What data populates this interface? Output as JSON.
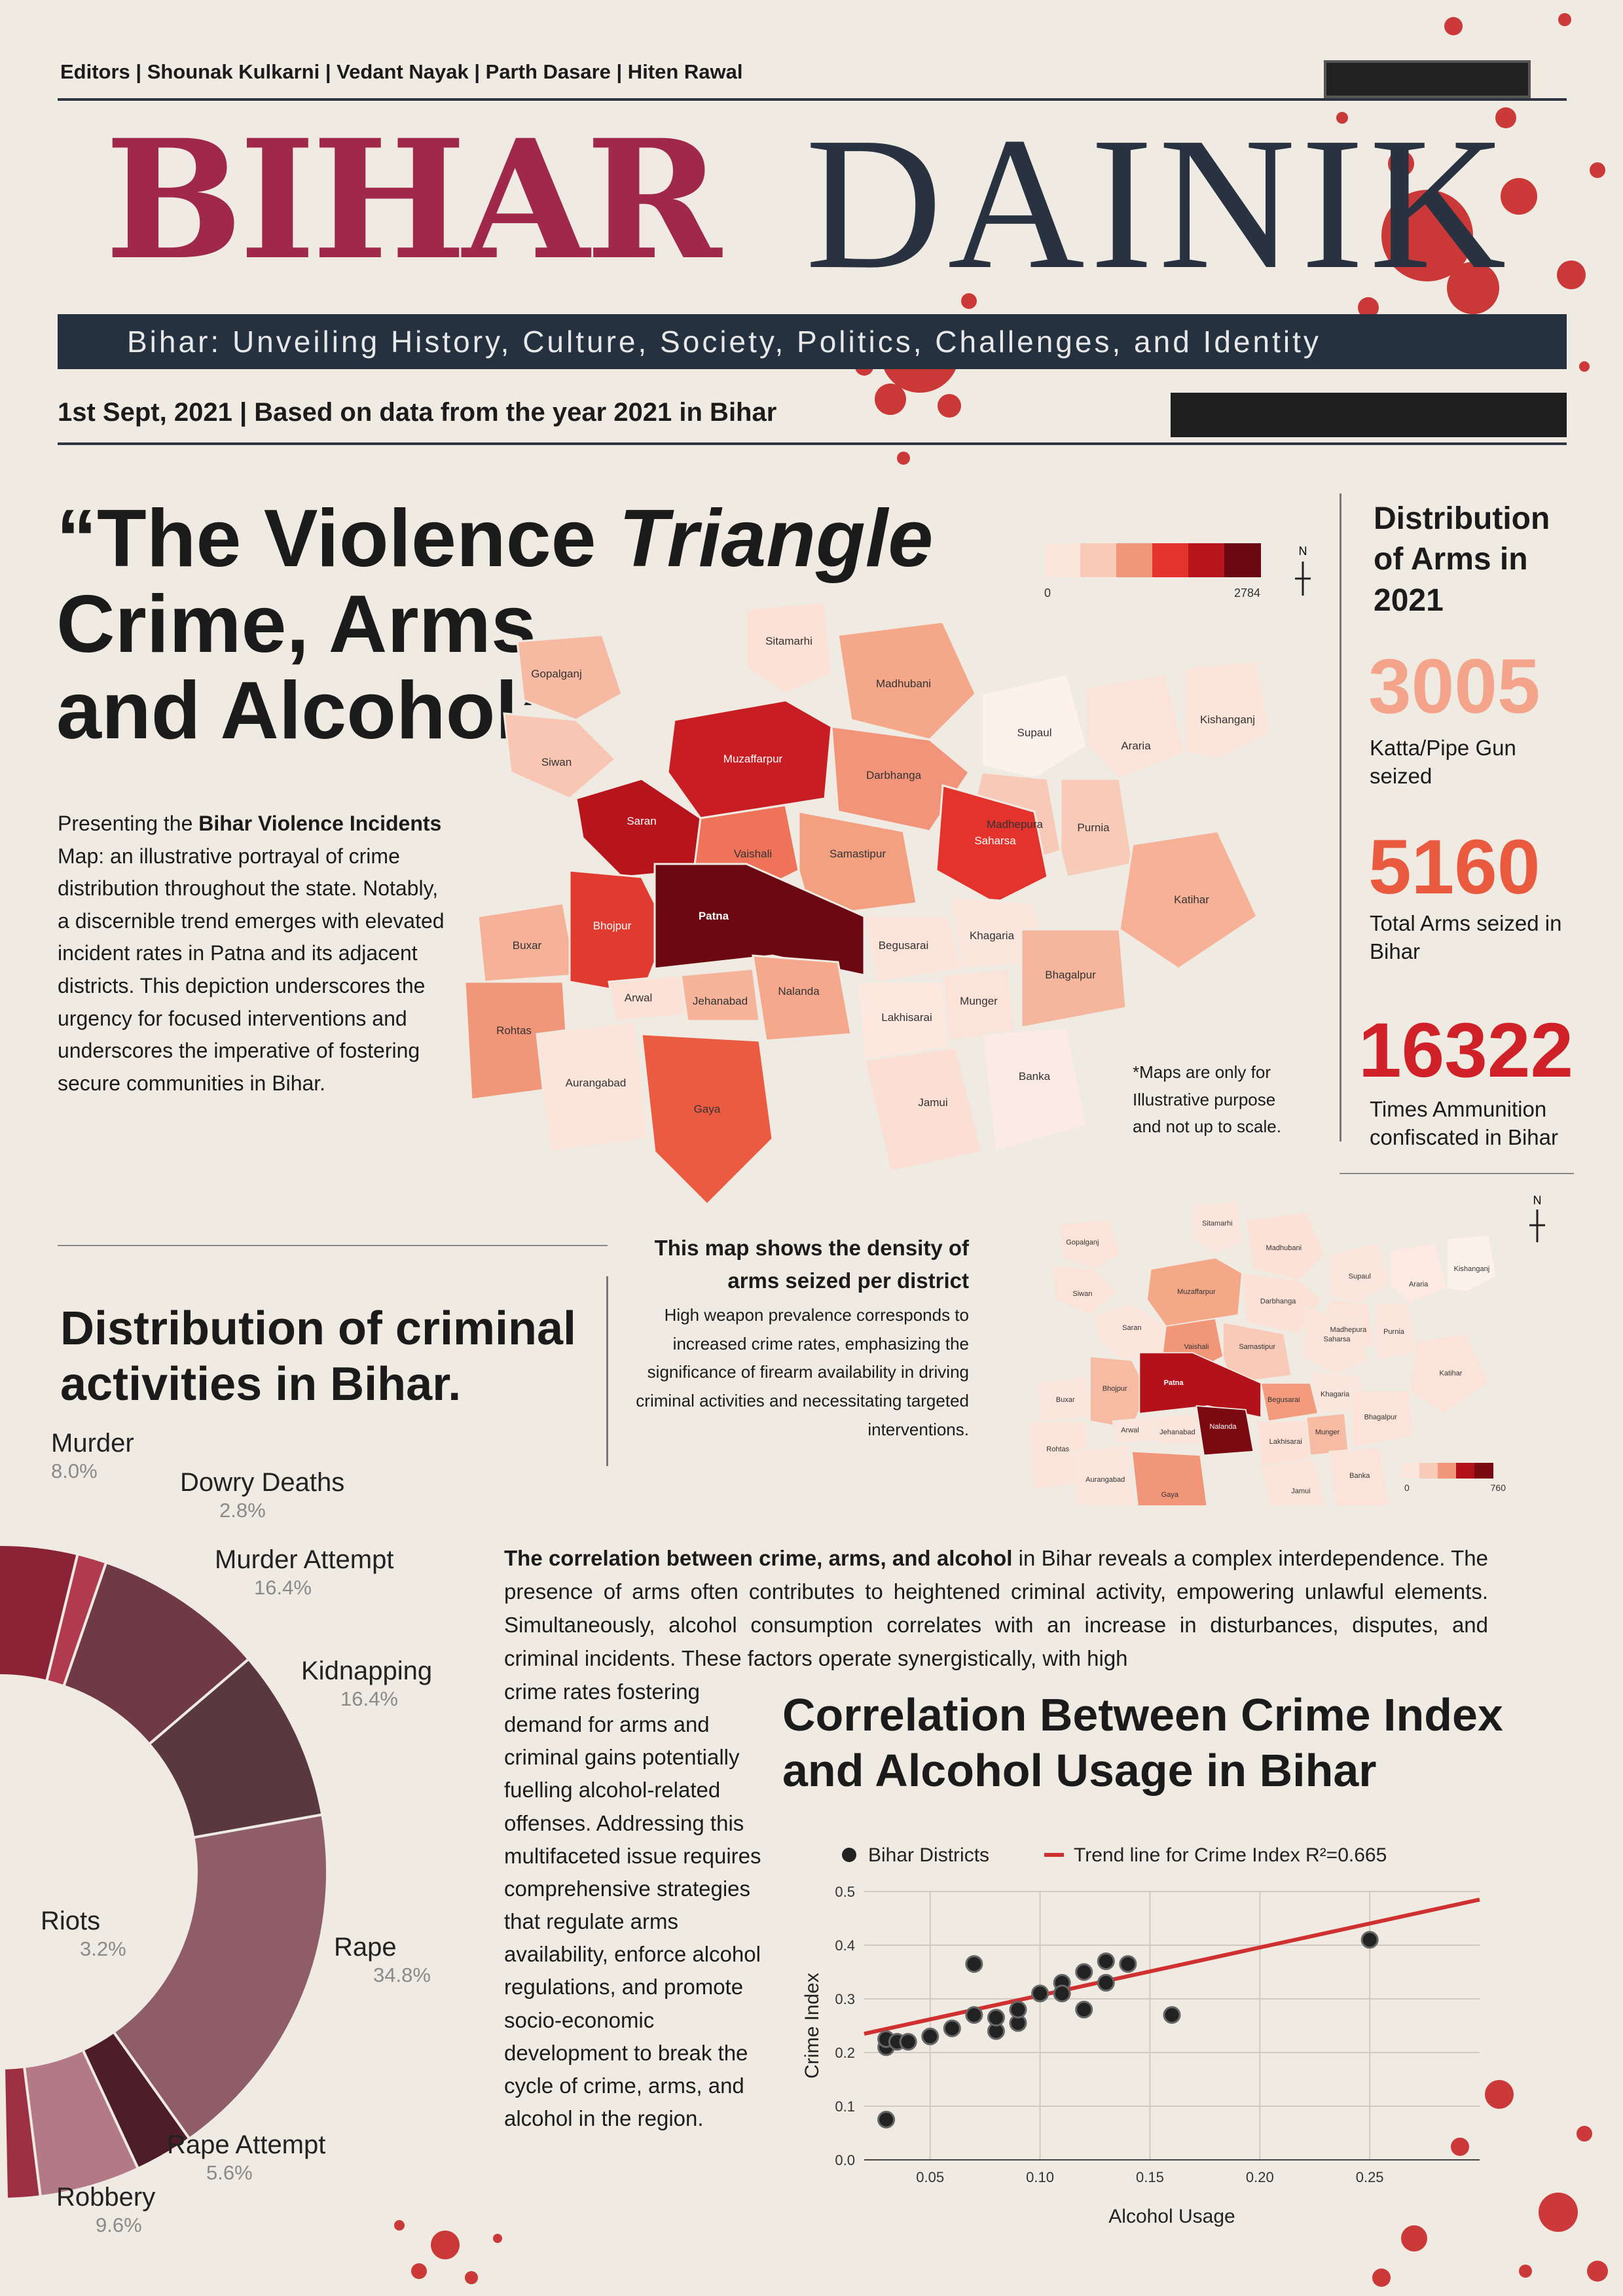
{
  "header": {
    "editors": "Editors | Shounak Kulkarni |  Vedant Nayak | Parth Dasare | Hiten Rawal",
    "masthead_left": "BIHAR",
    "masthead_right": "DAINIK",
    "tagline": "Bihar: Unveiling History, Culture, Society, Politics, Challenges, and Identity",
    "date": "1st Sept, 2021",
    "dateline_note": "|  Based on data from the year 2021 in Bihar"
  },
  "headline": {
    "line1_a": "“The Violence ",
    "line1_b": "Triangle",
    "line2": "Crime, Arms",
    "line3": "and Alcohol”"
  },
  "intro": {
    "pre": "Presenting the ",
    "bold": "Bihar Violence Incidents",
    "post": " Map: an illustrative portrayal of crime distribution throughout the state. Notably, a discernible trend emerges with elevated incident rates in Patna and its adjacent districts. This depiction underscores the urgency for focused interventions and underscores the imperative of fostering secure communities in Bihar."
  },
  "map_main": {
    "legend_min": "0",
    "legend_max": "2784",
    "north": "N",
    "districts": [
      "Gopalganj",
      "Sitamarhi",
      "Madhubani",
      "Supaul",
      "Araria",
      "Kishanganj",
      "Siwan",
      "Muzaffarpur",
      "Darbhanga",
      "Madhepura",
      "Saran",
      "Vaishali",
      "Samastipur",
      "Saharsa",
      "Purnia",
      "Katihar",
      "Buxar",
      "Bhojpur",
      "Patna",
      "Begusarai",
      "Khagaria",
      "Arwal",
      "Jehanabad",
      "Nalanda",
      "Munger",
      "Bhagalpur",
      "Rohtas",
      "Lakhisarai",
      "Aurangabad",
      "Jamui",
      "Banka",
      "Gaya"
    ],
    "colors": {
      "Gopalganj": "#f6b9a1",
      "Sitamarhi": "#fbe1d6",
      "Madhubani": "#f5a889",
      "Supaul": "#fdf1ec",
      "Araria": "#fbe3d9",
      "Kishanganj": "#fbe4da",
      "Siwan": "#f8c6b2",
      "Muzaffarpur": "#c91d24",
      "Darbhanga": "#f29479",
      "Madhepura": "#f8c9b6",
      "Saran": "#b8141c",
      "Vaishali": "#ee7358",
      "Samastipur": "#f3a081",
      "Saharsa": "#e3332c",
      "Purnia": "#f8cbb8",
      "Katihar": "#f6b197",
      "Buxar": "#f6b299",
      "Bhojpur": "#e13b2f",
      "Patna": "#6b0811",
      "Begusarai": "#fbe4da",
      "Khagaria": "#fbe6dd",
      "Arwal": "#fbe1d6",
      "Jehanabad": "#f6b49b",
      "Nalanda": "#f5a88b",
      "Munger": "#fbe3d9",
      "Bhagalpur": "#f6b69d",
      "Rohtas": "#f29679",
      "Lakhisarai": "#fce8df",
      "Aurangabad": "#fbe4da",
      "Jamui": "#fbdfd3",
      "Banka": "#fcebe4",
      "Gaya": "#eb5b42"
    }
  },
  "arms": {
    "title": "Distribution of Arms in 2021",
    "stats": [
      {
        "value": "3005",
        "caption": "Katta/Pipe Gun seized",
        "color": "#f3a48a"
      },
      {
        "value": "5160",
        "caption": "Total Arms seized in Bihar",
        "color": "#ea5a3e"
      },
      {
        "value": "16322",
        "caption": "Times Ammunition confiscated in Bihar",
        "color": "#cf2127"
      }
    ]
  },
  "maps_note": "*Maps are only for Illustrative purpose and not up to scale.",
  "map_arms": {
    "caption_title": "This map shows the density of arms seized per district",
    "caption_body": "High weapon prevalence corresponds to increased crime rates, emphasizing the significance of firearm availability in driving criminal activities and necessitating targeted interventions.",
    "legend_min": "0",
    "legend_max": "760",
    "north": "N",
    "colors": {
      "Gopalganj": "#fbe3d9",
      "Sitamarhi": "#fbe6dd",
      "Madhubani": "#fbe1d6",
      "Supaul": "#fbe6dd",
      "Araria": "#fce9e1",
      "Kishanganj": "#fdf1ec",
      "Siwan": "#fbe3d9",
      "Muzaffarpur": "#f5a888",
      "Darbhanga": "#fbe1d6",
      "Madhepura": "#fbe3d9",
      "Saran": "#fbe6dd",
      "Vaishali": "#f29679",
      "Samastipur": "#f8cab7",
      "Saharsa": "#fbe4da",
      "Purnia": "#fbe6dd",
      "Katihar": "#fbe3d9",
      "Buxar": "#fbe6dd",
      "Bhojpur": "#f7bba3",
      "Patna": "#b3121b",
      "Begusarai": "#f39b7c",
      "Khagaria": "#fbe6dd",
      "Arwal": "#fbe6dd",
      "Jehanabad": "#fbe4da",
      "Nalanda": "#7a0911",
      "Munger": "#f7bba3",
      "Bhagalpur": "#fbe3d9",
      "Rohtas": "#fbe4da",
      "Lakhisarai": "#fbe1d6",
      "Aurangabad": "#fbe6dd",
      "Jamui": "#fbe4da",
      "Banka": "#fbe3d9",
      "Gaya": "#f29679"
    }
  },
  "crime_section": {
    "title": "Distribution of criminal activities in Bihar.",
    "slices": [
      {
        "label": "Murder",
        "pct": "8.0%",
        "value": 8.0,
        "color": "#8a2336"
      },
      {
        "label": "Dowry Deaths",
        "pct": "2.8%",
        "value": 2.8,
        "color": "#b13b4e"
      },
      {
        "label": "Murder Attempt",
        "pct": "16.4%",
        "value": 16.4,
        "color": "#6f3a45"
      },
      {
        "label": "Kidnapping",
        "pct": "16.4%",
        "value": 16.4,
        "color": "#5a3840"
      },
      {
        "label": "Rape",
        "pct": "34.8%",
        "value": 34.8,
        "color": "#8f5d68"
      },
      {
        "label": "Rape Attempt",
        "pct": "5.6%",
        "value": 5.6,
        "color": "#4d1e2a"
      },
      {
        "label": "Robbery",
        "pct": "9.6%",
        "value": 9.6,
        "color": "#b37987"
      },
      {
        "label": "Riots",
        "pct": "3.2%",
        "value": 3.2,
        "color": "#9d2f43"
      }
    ]
  },
  "correlation": {
    "para_bold": "The correlation between crime, arms, and alcohol",
    "para_rest": " in Bihar reveals a complex interdependence. The presence of arms often contributes to heightened criminal activity, empowering unlawful elements. Simultaneously, alcohol consumption correlates with an increase in disturbances, disputes, and criminal incidents. These factors operate synergistically, with high",
    "column": "crime rates fostering demand for arms and criminal gains potentially fuelling alcohol-related offenses. Addressing this multifaceted issue requires comprehensive strategies that regulate arms availability, enforce alcohol regulations, and promote socio-economic development to break the cycle of crime, arms, and alcohol in the region."
  },
  "chart_data": {
    "type": "scatter",
    "title": "Correlation Between Crime Index and Alcohol Usage in Bihar",
    "xlabel": "Alcohol Usage",
    "ylabel": "Crime Index",
    "xlim": [
      0.02,
      0.3
    ],
    "ylim": [
      0.0,
      0.5
    ],
    "xticks": [
      "0.05",
      "0.10",
      "0.15",
      "0.20",
      "0.25"
    ],
    "yticks": [
      "0.0",
      "0.1",
      "0.2",
      "0.3",
      "0.4",
      "0.5"
    ],
    "legend": {
      "points": "Bihar Districts",
      "trend": "Trend line for Crime Index  R²=0.665"
    },
    "grid": true,
    "series": [
      {
        "name": "Bihar Districts",
        "points": [
          [
            0.03,
            0.075
          ],
          [
            0.03,
            0.21
          ],
          [
            0.03,
            0.225
          ],
          [
            0.035,
            0.22
          ],
          [
            0.04,
            0.22
          ],
          [
            0.05,
            0.23
          ],
          [
            0.06,
            0.245
          ],
          [
            0.07,
            0.365
          ],
          [
            0.07,
            0.27
          ],
          [
            0.08,
            0.24
          ],
          [
            0.08,
            0.265
          ],
          [
            0.09,
            0.255
          ],
          [
            0.09,
            0.28
          ],
          [
            0.1,
            0.31
          ],
          [
            0.11,
            0.33
          ],
          [
            0.11,
            0.31
          ],
          [
            0.12,
            0.35
          ],
          [
            0.12,
            0.28
          ],
          [
            0.13,
            0.37
          ],
          [
            0.13,
            0.33
          ],
          [
            0.14,
            0.365
          ],
          [
            0.16,
            0.27
          ],
          [
            0.25,
            0.41
          ]
        ]
      },
      {
        "name": "Trend line for Crime Index",
        "line": [
          [
            0.02,
            0.235
          ],
          [
            0.3,
            0.485
          ]
        ]
      }
    ]
  }
}
